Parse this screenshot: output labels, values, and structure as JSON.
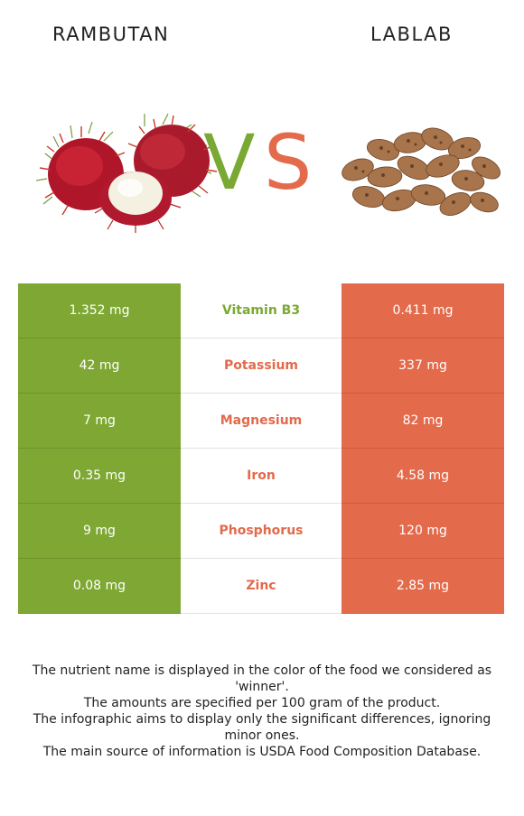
{
  "header": {
    "left_food": "RAMBUTAN",
    "right_food": "LABLAB",
    "vs_v": "V",
    "vs_s": "S"
  },
  "colors": {
    "left_winner": "#7ea833",
    "right_winner": "#e36a4b"
  },
  "rows": [
    {
      "left": "1.352 mg",
      "nutrient": "Vitamin B3",
      "right": "0.411 mg",
      "winner": "left"
    },
    {
      "left": "42 mg",
      "nutrient": "Potassium",
      "right": "337 mg",
      "winner": "right"
    },
    {
      "left": "7 mg",
      "nutrient": "Magnesium",
      "right": "82 mg",
      "winner": "right"
    },
    {
      "left": "0.35 mg",
      "nutrient": "Iron",
      "right": "4.58 mg",
      "winner": "right"
    },
    {
      "left": "9 mg",
      "nutrient": "Phosphorus",
      "right": "120 mg",
      "winner": "right"
    },
    {
      "left": "0.08 mg",
      "nutrient": "Zinc",
      "right": "2.85 mg",
      "winner": "right"
    }
  ],
  "footer": {
    "line1": "The nutrient name is displayed in the color of the food we considered as 'winner'.",
    "line2": "The amounts are specified per 100 gram of the product.",
    "line3": "The infographic aims to display only the significant differences, ignoring minor ones.",
    "line4": "The main source of information is USDA Food Composition Database."
  }
}
